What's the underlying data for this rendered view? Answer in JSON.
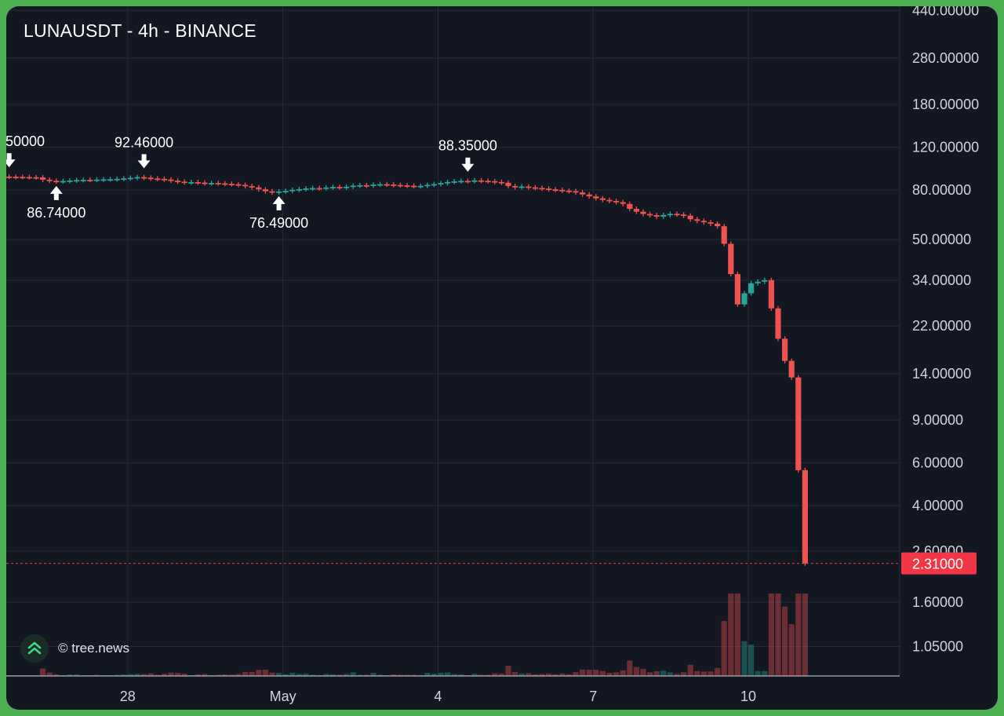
{
  "window": {
    "title": "LUNAUSDT - 4h - BINANCE"
  },
  "attribution": {
    "text": "© tree.news",
    "logo_icon": "tree-news-logo-icon"
  },
  "colors": {
    "background": "#131722",
    "frame": "#4caf50",
    "up": "#26a69a",
    "down": "#ef5350",
    "grid": "#242a36",
    "current_price": "#f23645"
  },
  "chart_data": {
    "type": "candlestick",
    "title": "LUNAUSDT - 4h - BINANCE",
    "symbol": "LUNAUSDT",
    "interval": "4h",
    "exchange": "BINANCE",
    "y_scale": "log",
    "price_ticks": [
      "440.00000",
      "280.00000",
      "180.00000",
      "120.00000",
      "80.00000",
      "50.00000",
      "34.00000",
      "22.00000",
      "14.00000",
      "9.00000",
      "6.00000",
      "4.00000",
      "2.60000",
      "1.60000",
      "1.05000"
    ],
    "time_ticks": [
      "28",
      "May",
      "4",
      "7",
      "10"
    ],
    "current_price": "2.31000",
    "annotations": [
      {
        "label": "50000",
        "type": "high"
      },
      {
        "label": "92.46000",
        "type": "high"
      },
      {
        "label": "88.35000",
        "type": "high"
      },
      {
        "label": "86.74000",
        "type": "low"
      },
      {
        "label": "76.49000",
        "type": "low"
      }
    ],
    "series": [
      {
        "name": "price",
        "close": [
          90.7,
          90.6,
          90.5,
          90.3,
          90.2,
          88.2,
          87.3,
          86.9,
          87.1,
          87.5,
          87.9,
          88.1,
          88.0,
          88.3,
          88.5,
          88.6,
          88.9,
          89.3,
          89.8,
          90.4,
          89.9,
          89.2,
          88.9,
          88.3,
          87.4,
          86.6,
          86.0,
          86.2,
          85.8,
          85.3,
          85.5,
          85.2,
          84.8,
          84.5,
          84.0,
          83.0,
          82.0,
          80.5,
          79.0,
          78.2,
          78.9,
          79.3,
          80.1,
          80.6,
          81.2,
          81.5,
          81.4,
          81.9,
          82.3,
          82.0,
          82.5,
          83.4,
          83.7,
          83.4,
          84.2,
          84.5,
          84.3,
          83.9,
          83.6,
          83.3,
          83.0,
          83.2,
          84.0,
          84.6,
          85.4,
          86.3,
          86.8,
          87.2,
          87.0,
          87.6,
          87.3,
          87.0,
          86.3,
          85.7,
          83.1,
          82.1,
          82.7,
          82.0,
          81.6,
          81.1,
          80.5,
          80.1,
          79.5,
          79.1,
          78.2,
          76.7,
          75.3,
          73.9,
          72.8,
          72.1,
          71.3,
          70.1,
          66.9,
          65.1,
          63.7,
          63.0,
          62.1,
          63.1,
          63.8,
          63.4,
          62.7,
          60.6,
          59.7,
          58.9,
          58.1,
          56.7,
          48.0,
          36.0,
          27.0,
          30.0,
          33.0,
          33.5,
          34.0,
          26.0,
          19.5,
          15.8,
          13.5,
          5.6,
          2.31
        ]
      }
    ]
  }
}
